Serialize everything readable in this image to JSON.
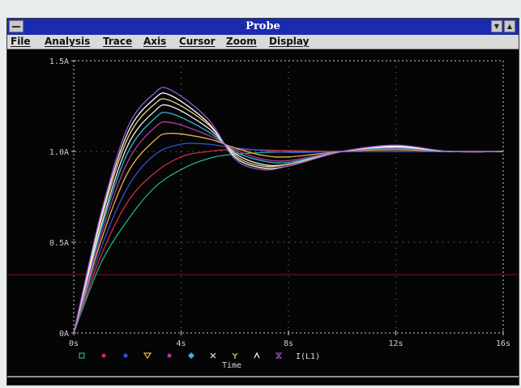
{
  "window": {
    "title": "Probe"
  },
  "menu": {
    "items": [
      {
        "label": "File"
      },
      {
        "label": "Analysis"
      },
      {
        "label": "Trace"
      },
      {
        "label": "Axis"
      },
      {
        "label": "Cursor"
      },
      {
        "label": "Zoom"
      },
      {
        "label": "Display"
      }
    ]
  },
  "chart_data": {
    "type": "line",
    "title": "",
    "xlabel": "Time",
    "ylabel": "",
    "xlim": [
      0,
      16
    ],
    "ylim": [
      0,
      1.5
    ],
    "x_ticks": [
      {
        "value": 0,
        "label": "0s"
      },
      {
        "value": 4,
        "label": "4s"
      },
      {
        "value": 8,
        "label": "8s"
      },
      {
        "value": 12,
        "label": "12s"
      },
      {
        "value": 16,
        "label": "16s"
      }
    ],
    "y_ticks": [
      {
        "value": 0,
        "label": "0A"
      },
      {
        "value": 0.5,
        "label": "0.5A"
      },
      {
        "value": 1.0,
        "label": "1.0A"
      },
      {
        "value": 1.5,
        "label": "1.5A"
      }
    ],
    "grid": true,
    "legend_placement": "bottom",
    "legend_label": "I(L1)",
    "series": [
      {
        "color": "#22b08a",
        "marker": "square",
        "x": [
          0,
          1,
          2,
          3,
          4,
          5,
          6,
          8,
          10,
          12,
          14,
          16
        ],
        "y": [
          0,
          0.38,
          0.62,
          0.8,
          0.9,
          0.96,
          0.985,
          0.998,
          1.0,
          1.0,
          1.0,
          1.0
        ]
      },
      {
        "color": "#c9333f",
        "marker": "circle",
        "x": [
          0,
          1,
          2,
          3,
          4,
          5,
          6,
          8,
          10,
          12,
          14,
          16
        ],
        "y": [
          0,
          0.42,
          0.72,
          0.88,
          0.97,
          1.0,
          1.01,
          1.005,
          1.0,
          1.0,
          1.0,
          1.0
        ]
      },
      {
        "color": "#3b4fd8",
        "marker": "circle",
        "x": [
          0,
          1,
          2,
          3,
          4,
          5,
          6,
          8,
          10,
          12,
          14,
          16
        ],
        "y": [
          0,
          0.46,
          0.8,
          0.98,
          1.04,
          1.04,
          1.02,
          0.995,
          1.0,
          1.0,
          1.0,
          1.0
        ]
      },
      {
        "color": "#e6b84a",
        "marker": "triangle-down",
        "x": [
          0,
          1,
          2,
          3,
          3.6,
          5,
          6,
          7,
          8,
          10,
          12,
          14,
          16
        ],
        "y": [
          0,
          0.5,
          0.88,
          1.06,
          1.1,
          1.07,
          1.02,
          0.98,
          0.97,
          1.0,
          1.01,
          1.0,
          1.0
        ]
      },
      {
        "color": "#b23aa0",
        "marker": "circle",
        "x": [
          0,
          1,
          2,
          3,
          3.6,
          5,
          6,
          7,
          8,
          10,
          12,
          14,
          16
        ],
        "y": [
          0,
          0.53,
          0.94,
          1.13,
          1.16,
          1.09,
          1.01,
          0.96,
          0.95,
          1.0,
          1.015,
          1.0,
          1.0
        ]
      },
      {
        "color": "#2fb8d8",
        "marker": "diamond",
        "x": [
          0,
          1,
          2,
          3,
          3.6,
          5,
          6,
          7,
          8,
          10,
          12,
          14,
          16
        ],
        "y": [
          0,
          0.56,
          0.99,
          1.18,
          1.21,
          1.11,
          1.0,
          0.95,
          0.94,
          1.0,
          1.02,
          1.0,
          1.0
        ]
      },
      {
        "color": "#eeeeee",
        "marker": "x",
        "x": [
          0,
          1,
          2,
          3,
          3.6,
          5,
          6,
          7,
          8,
          10,
          12,
          14,
          16
        ],
        "y": [
          0,
          0.58,
          1.03,
          1.22,
          1.25,
          1.13,
          0.99,
          0.93,
          0.93,
          1.0,
          1.025,
          1.0,
          1.0
        ]
      },
      {
        "color": "#f1d27a",
        "marker": "y",
        "x": [
          0,
          1,
          2,
          3,
          3.6,
          5,
          6,
          7,
          8,
          10,
          12,
          14,
          16
        ],
        "y": [
          0,
          0.61,
          1.07,
          1.26,
          1.28,
          1.15,
          0.98,
          0.92,
          0.93,
          1.0,
          1.03,
          1.0,
          1.0
        ]
      },
      {
        "color": "#ffffff",
        "marker": "caret",
        "x": [
          0,
          1,
          2,
          3,
          3.6,
          5,
          6,
          7,
          8,
          10,
          12,
          14,
          16
        ],
        "y": [
          0,
          0.63,
          1.1,
          1.29,
          1.31,
          1.16,
          0.97,
          0.91,
          0.92,
          1.0,
          1.03,
          1.0,
          1.0
        ]
      },
      {
        "color": "#9a58d6",
        "marker": "hourglass",
        "x": [
          0,
          1,
          2,
          3,
          3.6,
          5,
          6,
          7,
          8,
          10,
          12,
          14,
          16
        ],
        "y": [
          0,
          0.65,
          1.13,
          1.32,
          1.34,
          1.18,
          0.96,
          0.9,
          0.92,
          1.0,
          1.035,
          1.0,
          1.0
        ]
      }
    ]
  }
}
